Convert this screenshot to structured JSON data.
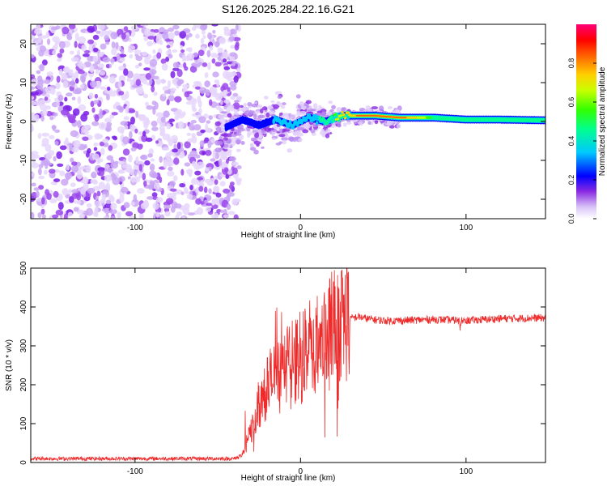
{
  "title": "S126.2025.284.22.16.G21",
  "chart_data": [
    {
      "type": "heatmap",
      "xlabel": "Height of straight line (km)",
      "ylabel": "Frequency (Hz)",
      "xlim": [
        -163,
        148
      ],
      "ylim": [
        -25,
        25
      ],
      "x_ticks": [
        -100,
        0,
        100
      ],
      "x_tick_labels": [
        "-100",
        "0",
        "100"
      ],
      "y_ticks": [
        -20,
        -10,
        0,
        10,
        20
      ],
      "y_tick_labels": [
        "-20",
        "-10",
        "0",
        "10",
        "20"
      ],
      "colorbar": {
        "label": "Normalized spectral amplitude",
        "range": [
          0,
          1
        ],
        "ticks": [
          0.0,
          0.2,
          0.4,
          0.6,
          0.8
        ],
        "tick_labels": [
          "0.0",
          "0.2",
          "0.4",
          "0.6",
          "0.8"
        ]
      },
      "ridge": {
        "x": [
          -45,
          -35,
          -25,
          -15,
          -5,
          5,
          15,
          25,
          35,
          45,
          60,
          80,
          100,
          120,
          148
        ],
        "freq_hz": [
          -1.5,
          0.5,
          -1.0,
          0.5,
          -1.0,
          1.0,
          0.0,
          1.5,
          1.5,
          1.5,
          1.0,
          1.0,
          0.5,
          0.5,
          0.3
        ],
        "amplitude": [
          0.25,
          0.3,
          0.3,
          0.35,
          0.35,
          0.4,
          0.5,
          0.75,
          0.85,
          0.85,
          0.9,
          0.6,
          0.55,
          0.55,
          0.55
        ]
      },
      "noise_region_x": [
        -163,
        -45
      ]
    },
    {
      "type": "line",
      "xlabel": "Height of straight line (km)",
      "ylabel": "SNR (10 * v/v)",
      "xlim": [
        -163,
        148
      ],
      "ylim": [
        0,
        500
      ],
      "x_ticks": [
        -100,
        0,
        100
      ],
      "x_tick_labels": [
        "-100",
        "0",
        "100"
      ],
      "y_ticks": [
        0,
        100,
        200,
        300,
        400,
        500
      ],
      "y_tick_labels": [
        "0",
        "100",
        "200",
        "300",
        "400",
        "500"
      ],
      "series": [
        {
          "name": "SNR",
          "color": "#ee2a2a",
          "x": [
            -163,
            -120,
            -80,
            -40,
            -35,
            -30,
            -25,
            -20,
            -15,
            -10,
            -5,
            0,
            5,
            10,
            15,
            20,
            25,
            30,
            35,
            40,
            50,
            60,
            80,
            100,
            120,
            148
          ],
          "y": [
            10,
            10,
            10,
            10,
            20,
            80,
            150,
            200,
            220,
            230,
            250,
            270,
            290,
            300,
            320,
            340,
            360,
            370,
            375,
            370,
            365,
            365,
            368,
            365,
            370,
            372
          ]
        }
      ]
    }
  ]
}
